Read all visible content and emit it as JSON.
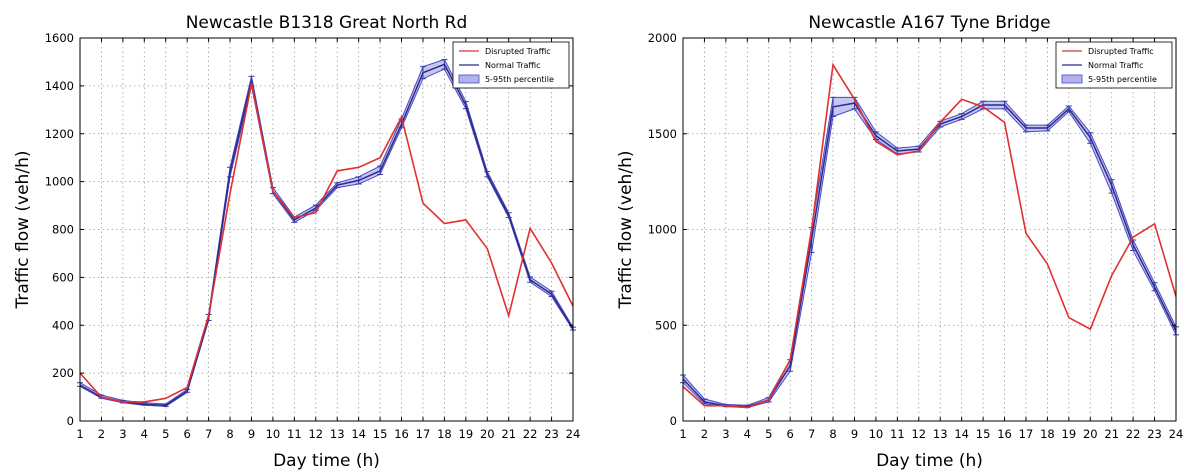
{
  "chart_data": [
    {
      "type": "line",
      "title": "Newcastle B1318 Great North Rd",
      "xlabel": "Day time (h)",
      "ylabel": "Traffic flow (veh/h)",
      "x": [
        1,
        2,
        3,
        4,
        5,
        6,
        7,
        8,
        9,
        10,
        11,
        12,
        13,
        14,
        15,
        16,
        17,
        18,
        19,
        20,
        21,
        22,
        23,
        24
      ],
      "xlim": [
        1,
        24
      ],
      "ylim": [
        0,
        1600
      ],
      "yticks": [
        0,
        200,
        400,
        600,
        800,
        1000,
        1200,
        1400,
        1600
      ],
      "grid": true,
      "legend_position": "top-right",
      "legend": [
        "Disrupted Traffic",
        "Normal Traffic",
        "5-95th percentile"
      ],
      "series": [
        {
          "name": "Disrupted Traffic",
          "color": "#e03030",
          "values": [
            200,
            100,
            80,
            80,
            95,
            140,
            440,
            950,
            1410,
            960,
            850,
            870,
            1045,
            1060,
            1100,
            1270,
            910,
            825,
            840,
            720,
            440,
            805,
            660,
            480
          ]
        },
        {
          "name": "Normal Traffic",
          "color": "#2c2c8a",
          "values": [
            150,
            100,
            80,
            70,
            65,
            125,
            430,
            1040,
            1420,
            960,
            840,
            890,
            985,
            1005,
            1045,
            1240,
            1455,
            1490,
            1320,
            1030,
            860,
            590,
            530,
            385
          ]
        }
      ],
      "band": {
        "name": "5-95th percentile",
        "color": "#8080e0",
        "low": [
          145,
          95,
          76,
          66,
          61,
          120,
          420,
          1020,
          1400,
          950,
          830,
          880,
          975,
          990,
          1030,
          1225,
          1430,
          1470,
          1305,
          1020,
          850,
          580,
          520,
          380
        ],
        "high": [
          160,
          108,
          86,
          76,
          71,
          132,
          445,
          1060,
          1440,
          975,
          852,
          902,
          995,
          1020,
          1065,
          1262,
          1480,
          1510,
          1335,
          1042,
          870,
          602,
          542,
          392
        ]
      }
    },
    {
      "type": "line",
      "title": "Newcastle A167 Tyne Bridge",
      "xlabel": "Day time (h)",
      "ylabel": "Traffic flow (veh/h)",
      "x": [
        1,
        2,
        3,
        4,
        5,
        6,
        7,
        8,
        9,
        10,
        11,
        12,
        13,
        14,
        15,
        16,
        17,
        18,
        19,
        20,
        21,
        22,
        23,
        24
      ],
      "xlim": [
        1,
        24
      ],
      "ylim": [
        0,
        2000
      ],
      "yticks": [
        0,
        500,
        1000,
        1500,
        2000
      ],
      "grid": true,
      "legend_position": "top-right",
      "legend": [
        "Disrupted Traffic",
        "Normal Traffic",
        "5-95th percentile"
      ],
      "series": [
        {
          "name": "Disrupted Traffic",
          "color": "#e03030",
          "values": [
            180,
            80,
            80,
            70,
            110,
            320,
            1000,
            1860,
            1680,
            1460,
            1390,
            1410,
            1560,
            1680,
            1640,
            1560,
            980,
            820,
            540,
            480,
            760,
            960,
            1030,
            650
          ]
        },
        {
          "name": "Normal Traffic",
          "color": "#2c2c8a",
          "values": [
            220,
            100,
            80,
            75,
            110,
            290,
            950,
            1640,
            1660,
            1490,
            1410,
            1420,
            1550,
            1590,
            1650,
            1650,
            1530,
            1530,
            1630,
            1480,
            1230,
            920,
            700,
            470
          ]
        }
      ],
      "band": {
        "name": "5-95th percentile",
        "color": "#8080e0",
        "low": [
          200,
          90,
          75,
          70,
          100,
          260,
          880,
          1590,
          1630,
          1470,
          1395,
          1405,
          1535,
          1575,
          1630,
          1630,
          1510,
          1515,
          1615,
          1450,
          1190,
          890,
          680,
          450
        ],
        "high": [
          240,
          115,
          86,
          82,
          122,
          320,
          1010,
          1690,
          1690,
          1510,
          1425,
          1435,
          1565,
          1605,
          1670,
          1670,
          1545,
          1545,
          1645,
          1505,
          1260,
          945,
          722,
          492
        ]
      }
    }
  ]
}
